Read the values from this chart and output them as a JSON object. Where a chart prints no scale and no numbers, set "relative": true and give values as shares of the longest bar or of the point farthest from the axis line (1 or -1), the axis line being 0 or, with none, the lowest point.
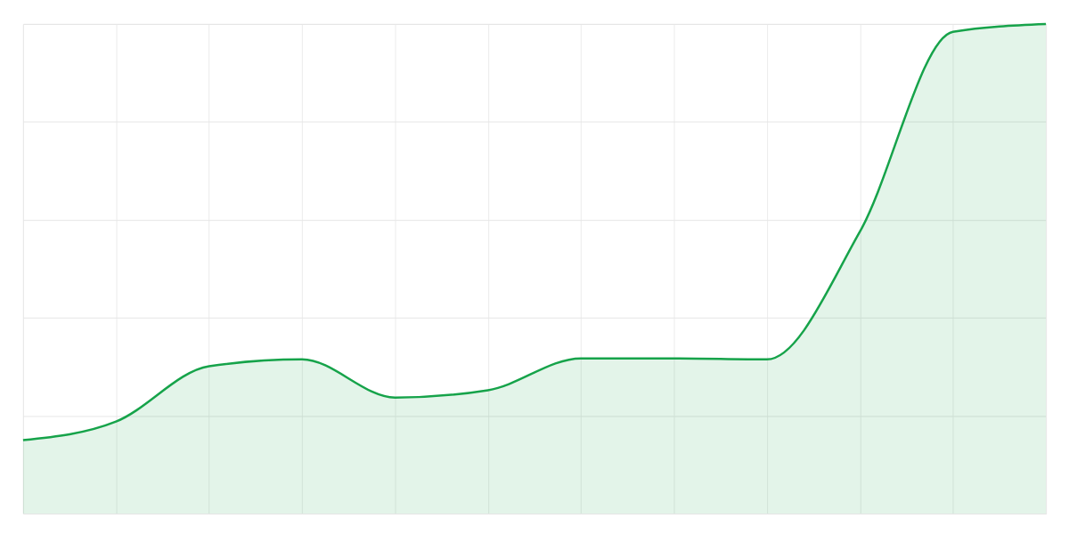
{
  "chart_data": {
    "type": "area",
    "relative": true,
    "grid": true,
    "categories": [
      null,
      null,
      null,
      null,
      null,
      null,
      null,
      null,
      null,
      null,
      null,
      null
    ],
    "series": [
      {
        "color": "#16a34a",
        "values": [
          0.15,
          0.188,
          0.301,
          0.315,
          0.237,
          0.252,
          0.317,
          0.317,
          0.315,
          0.576,
          0.984,
          1.0
        ]
      }
    ]
  }
}
